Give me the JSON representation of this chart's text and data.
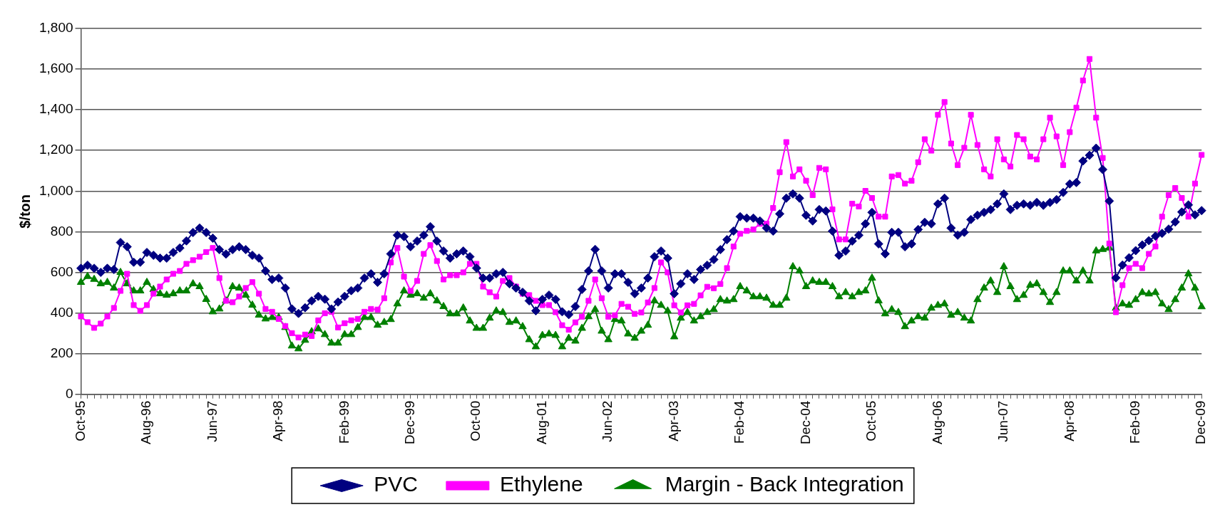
{
  "chart_data": {
    "type": "line",
    "ylabel": "$/ton",
    "categories": [
      "Oct-95",
      null,
      null,
      null,
      null,
      null,
      null,
      null,
      null,
      null,
      "Aug-96",
      null,
      null,
      null,
      null,
      null,
      null,
      null,
      null,
      null,
      "Jun-97",
      null,
      null,
      null,
      null,
      null,
      null,
      null,
      null,
      null,
      "Apr-98",
      null,
      null,
      null,
      null,
      null,
      null,
      null,
      null,
      null,
      "Feb-99",
      null,
      null,
      null,
      null,
      null,
      null,
      null,
      null,
      null,
      "Dec-99",
      null,
      null,
      null,
      null,
      null,
      null,
      null,
      null,
      null,
      "Oct-00",
      null,
      null,
      null,
      null,
      null,
      null,
      null,
      null,
      null,
      "Aug-01",
      null,
      null,
      null,
      null,
      null,
      null,
      null,
      null,
      null,
      "Jun-02",
      null,
      null,
      null,
      null,
      null,
      null,
      null,
      null,
      null,
      "Apr-03",
      null,
      null,
      null,
      null,
      null,
      null,
      null,
      null,
      null,
      "Feb-04",
      null,
      null,
      null,
      null,
      null,
      null,
      null,
      null,
      null,
      "Dec-04",
      null,
      null,
      null,
      null,
      null,
      null,
      null,
      null,
      null,
      "Oct-05",
      null,
      null,
      null,
      null,
      null,
      null,
      null,
      null,
      null,
      "Aug-06",
      null,
      null,
      null,
      null,
      null,
      null,
      null,
      null,
      null,
      "Jun-07",
      null,
      null,
      null,
      null,
      null,
      null,
      null,
      null,
      null,
      "Apr-08",
      null,
      null,
      null,
      null,
      null,
      null,
      null,
      null,
      null,
      "Feb-09",
      null,
      null,
      null,
      null,
      null,
      null,
      null,
      null,
      null,
      "Dec-09"
    ],
    "series": [
      {
        "name": "PVC",
        "color": "#000080",
        "marker": "diamond",
        "values": [
          620,
          635,
          620,
          600,
          620,
          614,
          747,
          726,
          650,
          650,
          698,
          684,
          670,
          670,
          698,
          720,
          755,
          796,
          818,
          796,
          768,
          712,
          690,
          712,
          726,
          712,
          684,
          670,
          607,
          565,
          572,
          523,
          420,
          398,
          426,
          460,
          482,
          468,
          420,
          454,
          482,
          510,
          523,
          572,
          593,
          551,
          593,
          691,
          783,
          776,
          726,
          754,
          783,
          825,
          754,
          705,
          670,
          691,
          705,
          677,
          621,
          572,
          572,
          593,
          600,
          544,
          523,
          502,
          460,
          411,
          467,
          488,
          467,
          406,
          392,
          432,
          516,
          607,
          713,
          607,
          523,
          593,
          593,
          551,
          495,
          523,
          572,
          677,
          705,
          670,
          495,
          544,
          593,
          565,
          614,
          635,
          663,
          712,
          761,
          803,
          874,
          867,
          867,
          853,
          818,
          803,
          888,
          965,
          986,
          965,
          881,
          853,
          909,
          902,
          803,
          684,
          705,
          754,
          783,
          839,
          895,
          740,
          691,
          797,
          797,
          726,
          740,
          811,
          846,
          839,
          937,
          965,
          818,
          783,
          797,
          860,
          881,
          895,
          909,
          937,
          986,
          909,
          930,
          937,
          930,
          944,
          930,
          944,
          958,
          993,
          1035,
          1042,
          1148,
          1176,
          1211,
          1106,
          951,
          573,
          636,
          672,
          707,
          735,
          756,
          778,
          792,
          813,
          848,
          897,
          932,
          883,
          904
        ]
      },
      {
        "name": "Ethylene",
        "color": "#ff00ff",
        "marker": "square",
        "values": [
          383,
          355,
          327,
          348,
          383,
          425,
          509,
          593,
          439,
          411,
          439,
          495,
          530,
          565,
          593,
          607,
          642,
          660,
          677,
          700,
          720,
          572,
          460,
          453,
          481,
          523,
          552,
          495,
          420,
          406,
          371,
          336,
          301,
          280,
          294,
          287,
          364,
          399,
          406,
          329,
          350,
          364,
          371,
          406,
          420,
          417,
          473,
          649,
          720,
          579,
          509,
          558,
          691,
          734,
          656,
          565,
          586,
          586,
          600,
          642,
          642,
          530,
          502,
          481,
          558,
          572,
          530,
          495,
          488,
          460,
          439,
          439,
          404,
          340,
          318,
          354,
          382,
          460,
          565,
          473,
          382,
          389,
          445,
          431,
          396,
          403,
          452,
          523,
          649,
          600,
          438,
          403,
          438,
          445,
          487,
          529,
          522,
          543,
          621,
          727,
          790,
          804,
          811,
          839,
          839,
          917,
          1093,
          1241,
          1072,
          1107,
          1051,
          980,
          1114,
          1107,
          910,
          762,
          762,
          938,
          924,
          1001,
          966,
          874,
          874,
          1072,
          1079,
          1037,
          1051,
          1142,
          1255,
          1199,
          1375,
          1438,
          1234,
          1128,
          1213,
          1375,
          1227,
          1107,
          1072,
          1255,
          1156,
          1121,
          1276,
          1255,
          1170,
          1156,
          1255,
          1361,
          1269,
          1128,
          1290,
          1410,
          1544,
          1650,
          1361,
          1163,
          742,
          404,
          537,
          621,
          642,
          621,
          691,
          727,
          874,
          980,
          1015,
          966,
          874,
          1037,
          1178
        ]
      },
      {
        "name": "Margin - Back Integration",
        "color": "#008000",
        "marker": "triangle",
        "values": [
          551,
          580,
          566,
          544,
          551,
          523,
          600,
          544,
          509,
          509,
          551,
          516,
          495,
          488,
          495,
          509,
          509,
          544,
          530,
          467,
          406,
          420,
          460,
          530,
          523,
          488,
          439,
          390,
          371,
          378,
          378,
          329,
          238,
          224,
          266,
          308,
          322,
          294,
          252,
          252,
          294,
          294,
          329,
          378,
          378,
          340,
          354,
          368,
          445,
          509,
          488,
          495,
          473,
          495,
          460,
          432,
          396,
          396,
          425,
          361,
          325,
          325,
          375,
          410,
          403,
          354,
          361,
          333,
          269,
          234,
          290,
          297,
          290,
          234,
          276,
          262,
          325,
          382,
          417,
          311,
          269,
          368,
          361,
          297,
          276,
          311,
          340,
          460,
          438,
          410,
          283,
          375,
          403,
          361,
          382,
          403,
          417,
          466,
          459,
          466,
          530,
          509,
          480,
          480,
          473,
          438,
          438,
          473,
          628,
          607,
          530,
          558,
          551,
          551,
          530,
          480,
          501,
          480,
          501,
          509,
          572,
          460,
          396,
          417,
          403,
          333,
          361,
          382,
          375,
          424,
          438,
          445,
          389,
          403,
          375,
          361,
          466,
          523,
          558,
          501,
          628,
          530,
          466,
          487,
          537,
          544,
          501,
          452,
          501,
          607,
          607,
          558,
          607,
          558,
          706,
          713,
          720,
          424,
          445,
          438,
          466,
          501,
          494,
          501,
          445,
          417,
          466,
          523,
          593,
          523,
          431
        ]
      }
    ],
    "ylim": [
      0,
      1800
    ],
    "yticks": [
      0,
      200,
      400,
      600,
      800,
      {
        "value": 1000,
        "label": "1,000"
      },
      {
        "value": 1200,
        "label": "1,200"
      },
      {
        "value": 1400,
        "label": "1,400"
      },
      {
        "value": 1600,
        "label": "1,600"
      },
      {
        "value": 1800,
        "label": "1,800"
      }
    ],
    "grid": "y",
    "legend": "bottom"
  }
}
